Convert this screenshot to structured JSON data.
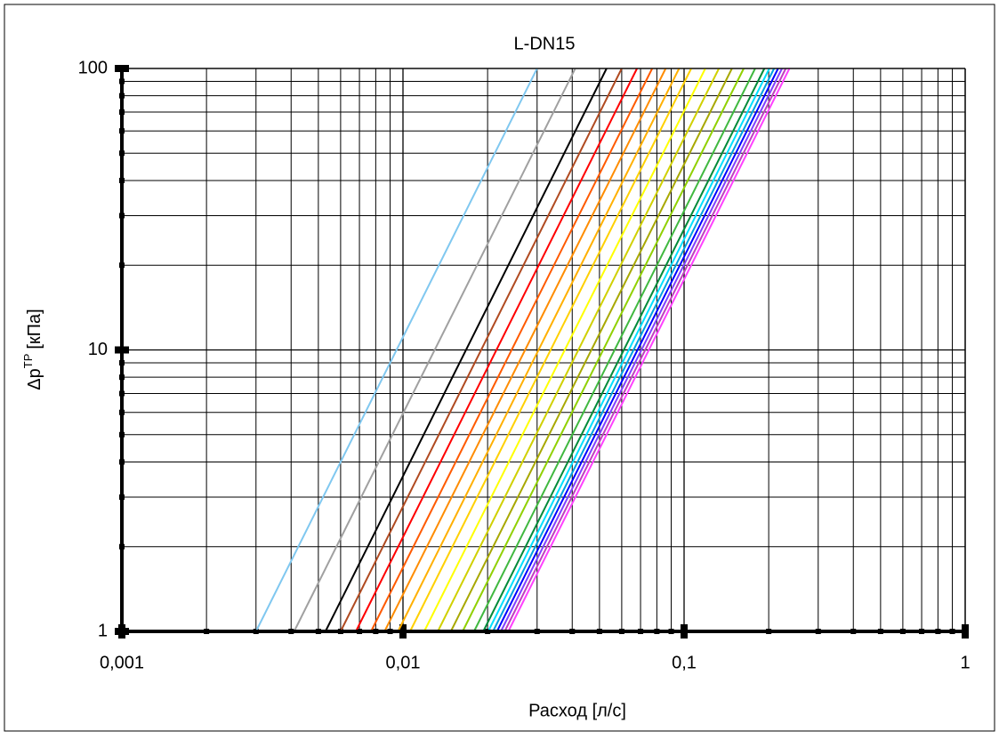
{
  "chart_data": {
    "type": "line",
    "title": "L-DN15",
    "xlabel": "Расход [л/с]",
    "ylabel": {
      "symbol": "Δp",
      "superscript": "TP",
      "unit": "[кПа]"
    },
    "log_x": true,
    "log_y": true,
    "grid": true,
    "xlim": [
      0.001,
      1
    ],
    "ylim": [
      1,
      100
    ],
    "xticks": [
      {
        "value": 0.001,
        "label": "0,001"
      },
      {
        "value": 0.01,
        "label": "0,01"
      },
      {
        "value": 0.1,
        "label": "0,1"
      },
      1
    ],
    "yticks": [
      1,
      10,
      100
    ],
    "xminorticks": [
      0.002,
      0.003,
      0.004,
      0.005,
      0.006,
      0.007,
      0.008,
      0.009,
      0.02,
      0.03,
      0.04,
      0.05,
      0.06,
      0.07,
      0.08,
      0.09,
      0.2,
      0.3,
      0.4,
      0.5,
      0.6,
      0.7,
      0.8,
      0.9
    ],
    "yminorticks": [
      2,
      3,
      4,
      5,
      6,
      7,
      8,
      9,
      20,
      30,
      40,
      50,
      60,
      70,
      80,
      90
    ],
    "series": [
      {
        "color": "#80c8f0",
        "x": [
          0.003,
          0.03
        ],
        "values": [
          1,
          100
        ]
      },
      {
        "color": "#a0a0a0",
        "x": [
          0.0041,
          0.041
        ],
        "values": [
          1,
          100
        ]
      },
      {
        "color": "#000000",
        "x": [
          0.0053,
          0.053
        ],
        "values": [
          1,
          100
        ]
      },
      {
        "color": "#b04a20",
        "x": [
          0.006,
          0.06
        ],
        "values": [
          1,
          100
        ]
      },
      {
        "color": "#ff0000",
        "x": [
          0.0068,
          0.068
        ],
        "values": [
          1,
          100
        ]
      },
      {
        "color": "#ff5a00",
        "x": [
          0.0077,
          0.077
        ],
        "values": [
          1,
          100
        ]
      },
      {
        "color": "#ff8c00",
        "x": [
          0.0086,
          0.086
        ],
        "values": [
          1,
          100
        ]
      },
      {
        "color": "#ffb000",
        "x": [
          0.0096,
          0.096
        ],
        "values": [
          1,
          100
        ]
      },
      {
        "color": "#ffd000",
        "x": [
          0.0106,
          0.106
        ],
        "values": [
          1,
          100
        ]
      },
      {
        "color": "#ffff00",
        "x": [
          0.0119,
          0.119
        ],
        "values": [
          1,
          100
        ]
      },
      {
        "color": "#d0d000",
        "x": [
          0.0133,
          0.133
        ],
        "values": [
          1,
          100
        ]
      },
      {
        "color": "#a8a800",
        "x": [
          0.0148,
          0.148
        ],
        "values": [
          1,
          100
        ]
      },
      {
        "color": "#90d000",
        "x": [
          0.0163,
          0.163
        ],
        "values": [
          1,
          100
        ]
      },
      {
        "color": "#40b840",
        "x": [
          0.0179,
          0.179
        ],
        "values": [
          1,
          100
        ]
      },
      {
        "color": "#008a3a",
        "x": [
          0.0193,
          0.193
        ],
        "values": [
          1,
          100
        ]
      },
      {
        "color": "#00e0ff",
        "x": [
          0.0201,
          0.201
        ],
        "values": [
          1,
          100
        ]
      },
      {
        "color": "#00a0e0",
        "x": [
          0.0209,
          0.209
        ],
        "values": [
          1,
          100
        ]
      },
      {
        "color": "#0000ff",
        "x": [
          0.0216,
          0.216
        ],
        "values": [
          1,
          100
        ]
      },
      {
        "color": "#8040ff",
        "x": [
          0.0223,
          0.223
        ],
        "values": [
          1,
          100
        ]
      },
      {
        "color": "#c040c0",
        "x": [
          0.023,
          0.23
        ],
        "values": [
          1,
          100
        ]
      },
      {
        "color": "#ff40ff",
        "x": [
          0.0237,
          0.237
        ],
        "values": [
          1,
          100
        ]
      }
    ]
  }
}
